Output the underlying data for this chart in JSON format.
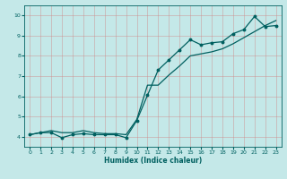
{
  "xlabel": "Humidex (Indice chaleur)",
  "background_color": "#c4e8e8",
  "grid_color": "#b0cccc",
  "line_color": "#006060",
  "xlim": [
    -0.5,
    23.5
  ],
  "ylim": [
    3.5,
    10.5
  ],
  "xticks": [
    0,
    1,
    2,
    3,
    4,
    5,
    6,
    7,
    8,
    9,
    10,
    11,
    12,
    13,
    14,
    15,
    16,
    17,
    18,
    19,
    20,
    21,
    22,
    23
  ],
  "yticks": [
    4,
    5,
    6,
    7,
    8,
    9,
    10
  ],
  "line1_x": [
    0,
    1,
    2,
    3,
    4,
    5,
    6,
    7,
    8,
    9,
    10,
    11,
    12,
    13,
    14,
    15,
    16,
    17,
    18,
    19,
    20,
    21,
    22,
    23
  ],
  "line1_y": [
    4.1,
    4.2,
    4.2,
    3.95,
    4.1,
    4.15,
    4.1,
    4.1,
    4.1,
    3.95,
    4.8,
    6.05,
    7.3,
    7.8,
    8.3,
    8.8,
    8.55,
    8.65,
    8.7,
    9.1,
    9.3,
    9.95,
    9.45,
    9.5
  ],
  "line2_x": [
    0,
    1,
    2,
    3,
    4,
    5,
    6,
    7,
    8,
    9,
    10,
    11,
    12,
    13,
    14,
    15,
    16,
    17,
    18,
    19,
    20,
    21,
    22,
    23
  ],
  "line2_y": [
    4.1,
    4.2,
    4.3,
    4.2,
    4.2,
    4.3,
    4.2,
    4.15,
    4.15,
    4.1,
    4.85,
    6.55,
    6.55,
    7.05,
    7.5,
    8.0,
    8.1,
    8.2,
    8.35,
    8.6,
    8.9,
    9.2,
    9.5,
    9.75
  ]
}
